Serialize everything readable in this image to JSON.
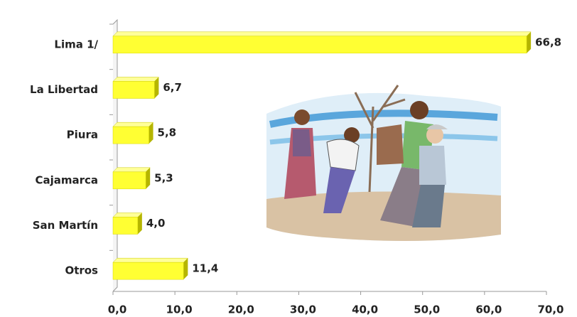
{
  "chart_data": {
    "type": "bar",
    "orientation": "horizontal",
    "categories": [
      "Lima 1/",
      "La Libertad",
      "Piura",
      "Cajamarca",
      "San Martín",
      "Otros"
    ],
    "values": [
      66.8,
      6.7,
      5.8,
      5.3,
      4.0,
      11.4
    ],
    "value_labels": [
      "66,8",
      "6,7",
      "5,8",
      "5,3",
      "4,0",
      "11,4"
    ],
    "color": "#ffff33",
    "xlim": [
      0,
      70
    ],
    "xticks": [
      {
        "value": 0,
        "label": "0,0"
      },
      {
        "value": 10,
        "label": "10,0"
      },
      {
        "value": 20,
        "label": "20,0"
      },
      {
        "value": 30,
        "label": "30,0"
      },
      {
        "value": 40,
        "label": "40,0"
      },
      {
        "value": 50,
        "label": "50,0"
      },
      {
        "value": 60,
        "label": "60,0"
      },
      {
        "value": 70,
        "label": "70,0"
      }
    ]
  }
}
